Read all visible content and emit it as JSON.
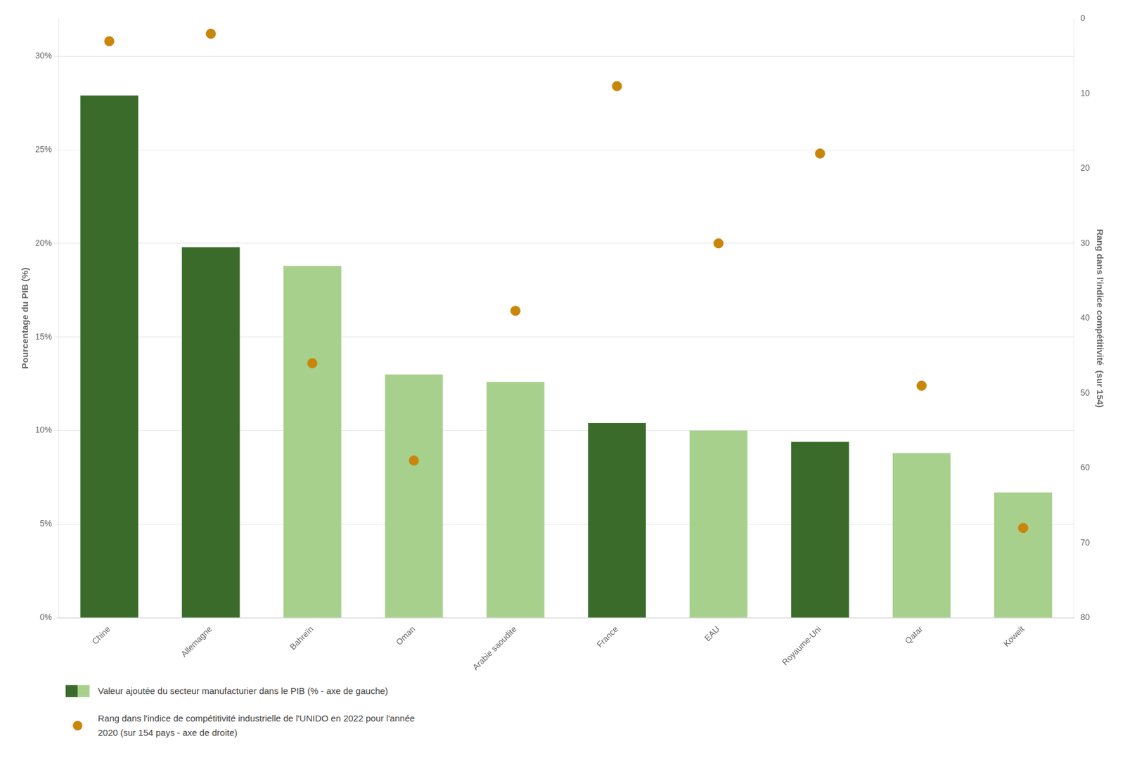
{
  "chart_data": {
    "type": "bar",
    "categories": [
      "Chine",
      "Allemagne",
      "Bahreïn",
      "Oman",
      "Arabie saoudite",
      "France",
      "EAU",
      "Royaume-Uni",
      "Qatar",
      "Koweit"
    ],
    "series": [
      {
        "name": "Valeur ajoutée du secteur manufacturier dans le PIB (% - axe de gauche)",
        "type": "bar",
        "colors": [
          "#3a6b2a",
          "#3a6b2a",
          "#a8d08d",
          "#a8d08d",
          "#a8d08d",
          "#3a6b2a",
          "#a8d08d",
          "#3a6b2a",
          "#a8d08d",
          "#a8d08d"
        ],
        "values": [
          27.9,
          19.8,
          18.8,
          13.0,
          12.6,
          10.4,
          10.0,
          9.4,
          8.8,
          6.7
        ]
      },
      {
        "name": "Rang dans l'indice de compétitivité industrielle de l'UNIDO en 2022 pour l'année\n2020 (sur 154 pays - axe de droite)",
        "type": "scatter",
        "axis": "y2",
        "color": "#c8860a",
        "values": [
          3,
          2,
          46,
          59,
          39,
          9,
          30,
          18,
          49,
          68
        ]
      }
    ],
    "ylabel": "Pourcentage du PIB (%)",
    "y2label": "Rang dans l'indice compétitivité  (sur 154)",
    "ylim": [
      0,
      32
    ],
    "yticks": [
      {
        "value": 0,
        "label": "0%"
      },
      {
        "value": 5,
        "label": "5%"
      },
      {
        "value": 10,
        "label": "10%"
      },
      {
        "value": 15,
        "label": "15%"
      },
      {
        "value": 20,
        "label": "20%"
      },
      {
        "value": 25,
        "label": "25%"
      },
      {
        "value": 30,
        "label": "30%"
      }
    ],
    "y2lim": [
      80,
      0
    ],
    "y2ticks": [
      0,
      10,
      20,
      30,
      40,
      50,
      60,
      70,
      80
    ],
    "grid": true,
    "legend": "bottom"
  }
}
